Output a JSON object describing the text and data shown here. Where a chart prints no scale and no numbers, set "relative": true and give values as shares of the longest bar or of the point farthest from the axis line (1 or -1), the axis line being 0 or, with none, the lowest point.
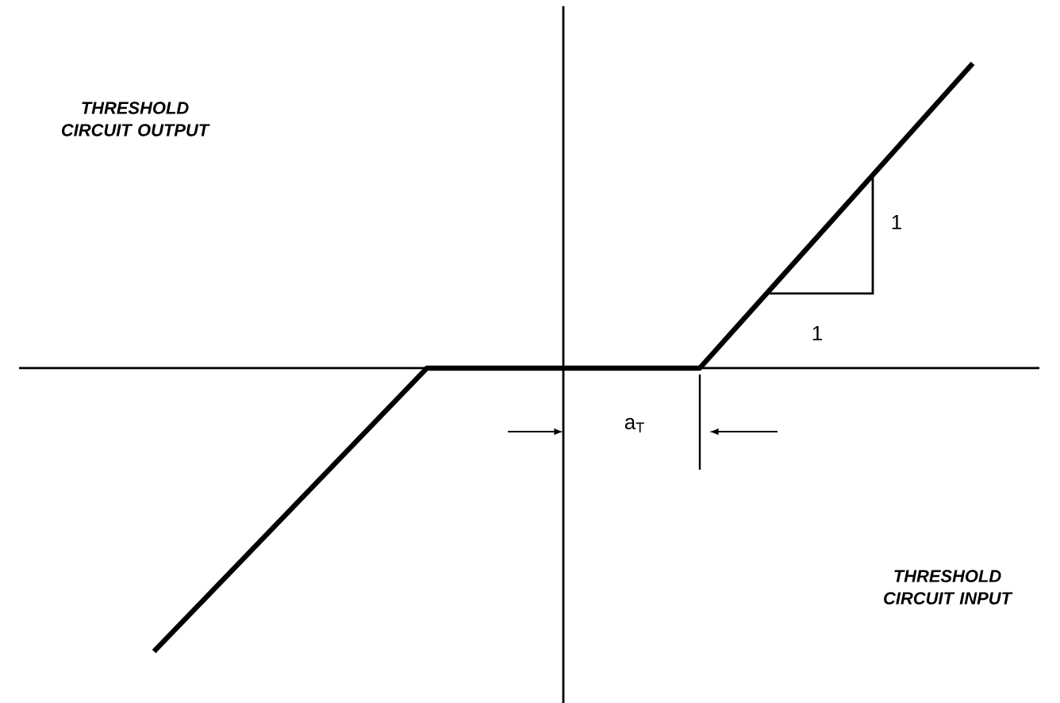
{
  "chart_data": {
    "type": "line",
    "relative": true,
    "categories": [
      null,
      null,
      null,
      null
    ],
    "values": [
      -0.93,
      0,
      0,
      1
    ],
    "color": "#000000",
    "ylabel": "THRESHOLD CIRCUIT OUTPUT",
    "xlabel": "THRESHOLD CIRCUIT INPUT",
    "annotations": [
      "a$_{T}$",
      "1",
      "1"
    ]
  }
}
